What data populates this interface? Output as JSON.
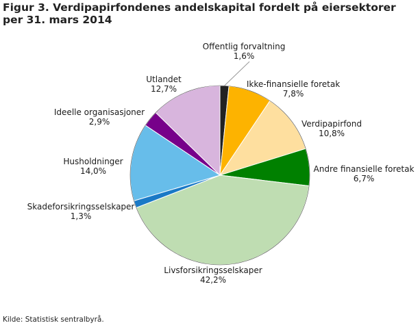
{
  "title": "Figur 3. Verdipapirfondenes andelskapital fordelt på eiersektorer per 31. mars 2014",
  "source": "Kilde: Statistisk sentralbyrå.",
  "chart_data": {
    "type": "pie",
    "title": "Figur 3. Verdipapirfondenes andelskapital fordelt på eiersektorer per 31. mars 2014",
    "slices": [
      {
        "name": "Offentlig forvaltning",
        "value": 1.6,
        "label": "1,6%",
        "color": "#222222"
      },
      {
        "name": "Ikke-finansielle foretak",
        "value": 7.8,
        "label": "7,8%",
        "color": "#FDB300"
      },
      {
        "name": "Verdipapirfond",
        "value": 10.8,
        "label": "10,8%",
        "color": "#FEDF9F"
      },
      {
        "name": "Andre finansielle foretak",
        "value": 6.7,
        "label": "6,7%",
        "color": "#008000"
      },
      {
        "name": "Livsforsikringsselskaper",
        "value": 42.2,
        "label": "42,2%",
        "color": "#BFDDB2"
      },
      {
        "name": "Skadeforsikringsselskaper",
        "value": 1.3,
        "label": "1,3%",
        "color": "#1A79C6"
      },
      {
        "name": "Husholdninger",
        "value": 14.0,
        "label": "14,0%",
        "color": "#67BDEA"
      },
      {
        "name": "Ideelle organisasjoner",
        "value": 2.9,
        "label": "2,9%",
        "color": "#77008A"
      },
      {
        "name": "Utlandet",
        "value": 12.7,
        "label": "12,7%",
        "color": "#D8B5DD"
      }
    ]
  }
}
